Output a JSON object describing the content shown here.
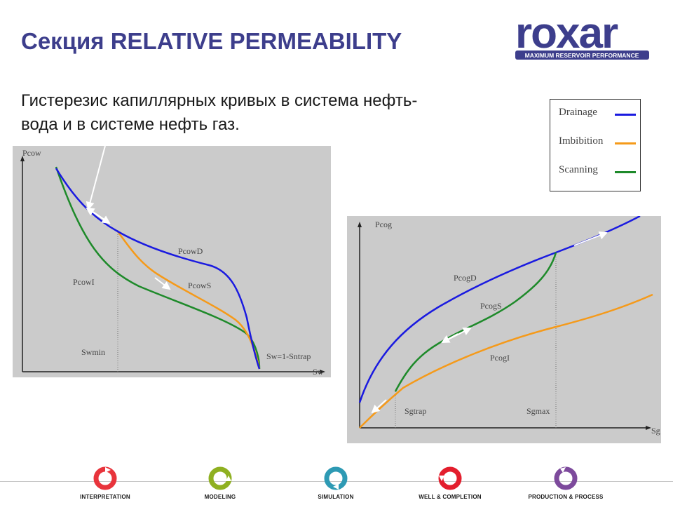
{
  "slide": {
    "title": "Секция RELATIVE PERMEABILITY",
    "subtitle": "Гистерезис капиллярных кривых в система нефть-вода и в системе нефть газ."
  },
  "logo": {
    "name": "roxar",
    "tagline": "MAXIMUM RESERVOIR PERFORMANCE",
    "color": "#3d3e8c"
  },
  "legend": {
    "items": [
      {
        "label": "Drainage",
        "color": "#1a1ae0"
      },
      {
        "label": "Imbibition",
        "color": "#f59a1a"
      },
      {
        "label": "Scanning",
        "color": "#1e8a2a"
      }
    ]
  },
  "diagram_oil_water": {
    "y_axis": "Pcow",
    "x_axis": "Sw",
    "curve_drainage": "PcowD",
    "curve_imbibition": "PcowI",
    "curve_scanning": "PcowS",
    "marker_left": "Swmin",
    "marker_right": "Sw=1-Sntrap"
  },
  "diagram_oil_gas": {
    "y_axis": "Pcog",
    "x_axis": "Sg",
    "curve_drainage": "PcogD",
    "curve_scanning": "PcogS",
    "curve_imbibition": "PcogI",
    "marker_left": "Sgtrap",
    "marker_right": "Sgmax"
  },
  "footer": {
    "items": [
      {
        "label": "INTERPRETATION",
        "color": "#e8343c"
      },
      {
        "label": "MODELING",
        "color": "#8fb021"
      },
      {
        "label": "SIMULATION",
        "color": "#2e9ab4"
      },
      {
        "label": "WELL & COMPLETION",
        "color": "#e31e2d"
      },
      {
        "label": "PRODUCTION & PROCESS",
        "color": "#7d4a9c"
      }
    ]
  }
}
